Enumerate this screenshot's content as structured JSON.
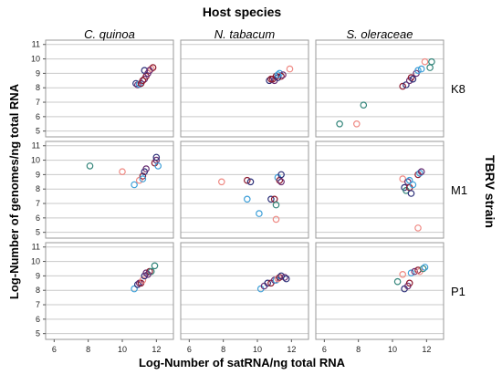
{
  "chart_data": {
    "type": "scatter",
    "title": "Host species",
    "xlabel": "Log-Number of satRNA/ng total RNA",
    "ylabel": "Log-Number of genomes/ng total RNA",
    "facet_col_title": "Host species",
    "facet_row_title": "TBRV strain",
    "columns": [
      "C. quinoa",
      "N. tabacum",
      "S. oleraceae"
    ],
    "rows": [
      "K8",
      "M1",
      "P1"
    ],
    "xlim": [
      5.5,
      13
    ],
    "ylim": [
      4.6,
      11.3
    ],
    "x_ticks": [
      6,
      8,
      10,
      12
    ],
    "y_ticks": [
      5,
      6,
      7,
      8,
      9,
      10,
      11
    ],
    "grid": true,
    "marker": "open-circle",
    "colors": {
      "dark_blue": "#2c2f78",
      "dark_red": "#8e1b2f",
      "blue": "#3d9fd8",
      "teal": "#33857a",
      "salmon": "#ef8a84",
      "purple": "#6a2e72",
      "gridline": "#c9c9c9",
      "frame": "#9a9a9a"
    },
    "panels": [
      {
        "row": "K8",
        "col": "C. quinoa",
        "points": [
          {
            "x": 10.8,
            "y": 8.3,
            "c": "dark_blue"
          },
          {
            "x": 10.9,
            "y": 8.2,
            "c": "purple"
          },
          {
            "x": 11.0,
            "y": 8.25,
            "c": "blue"
          },
          {
            "x": 11.1,
            "y": 8.3,
            "c": "dark_red"
          },
          {
            "x": 11.3,
            "y": 8.6,
            "c": "purple"
          },
          {
            "x": 11.4,
            "y": 8.8,
            "c": "dark_red"
          },
          {
            "x": 11.3,
            "y": 9.2,
            "c": "dark_blue"
          },
          {
            "x": 11.5,
            "y": 9.0,
            "c": "purple"
          },
          {
            "x": 11.7,
            "y": 9.3,
            "c": "salmon"
          },
          {
            "x": 11.8,
            "y": 9.4,
            "c": "dark_red"
          },
          {
            "x": 11.6,
            "y": 9.2,
            "c": "purple"
          },
          {
            "x": 11.2,
            "y": 8.5,
            "c": "dark_red"
          }
        ]
      },
      {
        "row": "K8",
        "col": "N. tabacum",
        "points": [
          {
            "x": 10.7,
            "y": 8.5,
            "c": "dark_blue"
          },
          {
            "x": 10.9,
            "y": 8.6,
            "c": "dark_red"
          },
          {
            "x": 11.0,
            "y": 8.5,
            "c": "purple"
          },
          {
            "x": 11.1,
            "y": 8.8,
            "c": "dark_red"
          },
          {
            "x": 11.2,
            "y": 8.7,
            "c": "dark_blue"
          },
          {
            "x": 11.3,
            "y": 9.0,
            "c": "blue"
          },
          {
            "x": 11.4,
            "y": 8.8,
            "c": "dark_red"
          },
          {
            "x": 11.5,
            "y": 8.9,
            "c": "purple"
          },
          {
            "x": 11.9,
            "y": 9.3,
            "c": "salmon"
          },
          {
            "x": 11.2,
            "y": 8.9,
            "c": "blue"
          },
          {
            "x": 10.8,
            "y": 8.6,
            "c": "dark_red"
          }
        ]
      },
      {
        "row": "K8",
        "col": "S. oleraceae",
        "points": [
          {
            "x": 6.9,
            "y": 5.5,
            "c": "teal"
          },
          {
            "x": 7.9,
            "y": 5.5,
            "c": "salmon"
          },
          {
            "x": 8.3,
            "y": 6.8,
            "c": "teal"
          },
          {
            "x": 10.6,
            "y": 8.1,
            "c": "dark_red"
          },
          {
            "x": 10.8,
            "y": 8.2,
            "c": "dark_blue"
          },
          {
            "x": 11.0,
            "y": 8.5,
            "c": "purple"
          },
          {
            "x": 11.1,
            "y": 8.7,
            "c": "dark_red"
          },
          {
            "x": 11.2,
            "y": 8.6,
            "c": "dark_blue"
          },
          {
            "x": 11.4,
            "y": 9.0,
            "c": "purple"
          },
          {
            "x": 11.5,
            "y": 9.2,
            "c": "blue"
          },
          {
            "x": 11.7,
            "y": 9.3,
            "c": "blue"
          },
          {
            "x": 11.9,
            "y": 9.8,
            "c": "salmon"
          },
          {
            "x": 12.2,
            "y": 9.4,
            "c": "teal"
          },
          {
            "x": 12.3,
            "y": 9.8,
            "c": "teal"
          }
        ]
      },
      {
        "row": "M1",
        "col": "C. quinoa",
        "points": [
          {
            "x": 8.1,
            "y": 9.6,
            "c": "teal"
          },
          {
            "x": 10.0,
            "y": 9.2,
            "c": "salmon"
          },
          {
            "x": 10.7,
            "y": 8.3,
            "c": "blue"
          },
          {
            "x": 11.0,
            "y": 8.6,
            "c": "salmon"
          },
          {
            "x": 11.2,
            "y": 8.9,
            "c": "dark_red"
          },
          {
            "x": 11.3,
            "y": 9.2,
            "c": "dark_blue"
          },
          {
            "x": 11.4,
            "y": 9.4,
            "c": "purple"
          },
          {
            "x": 11.2,
            "y": 8.7,
            "c": "blue"
          },
          {
            "x": 11.9,
            "y": 9.8,
            "c": "dark_red"
          },
          {
            "x": 12.0,
            "y": 10.0,
            "c": "purple"
          },
          {
            "x": 12.1,
            "y": 9.6,
            "c": "blue"
          },
          {
            "x": 12.0,
            "y": 10.2,
            "c": "dark_blue"
          }
        ]
      },
      {
        "row": "M1",
        "col": "N. tabacum",
        "points": [
          {
            "x": 7.9,
            "y": 8.5,
            "c": "salmon"
          },
          {
            "x": 9.4,
            "y": 8.6,
            "c": "dark_red"
          },
          {
            "x": 9.6,
            "y": 8.5,
            "c": "dark_blue"
          },
          {
            "x": 9.4,
            "y": 7.3,
            "c": "blue"
          },
          {
            "x": 10.1,
            "y": 6.3,
            "c": "blue"
          },
          {
            "x": 10.8,
            "y": 7.3,
            "c": "dark_blue"
          },
          {
            "x": 11.0,
            "y": 7.3,
            "c": "dark_red"
          },
          {
            "x": 11.1,
            "y": 6.9,
            "c": "teal"
          },
          {
            "x": 11.1,
            "y": 5.9,
            "c": "salmon"
          },
          {
            "x": 11.2,
            "y": 8.8,
            "c": "blue"
          },
          {
            "x": 11.3,
            "y": 8.6,
            "c": "dark_red"
          },
          {
            "x": 11.4,
            "y": 9.0,
            "c": "dark_blue"
          },
          {
            "x": 11.4,
            "y": 8.5,
            "c": "purple"
          }
        ]
      },
      {
        "row": "M1",
        "col": "S. oleraceae",
        "points": [
          {
            "x": 10.6,
            "y": 8.7,
            "c": "salmon"
          },
          {
            "x": 10.7,
            "y": 8.1,
            "c": "dark_blue"
          },
          {
            "x": 10.8,
            "y": 7.9,
            "c": "teal"
          },
          {
            "x": 10.9,
            "y": 8.5,
            "c": "purple"
          },
          {
            "x": 11.0,
            "y": 8.1,
            "c": "dark_red"
          },
          {
            "x": 11.0,
            "y": 8.6,
            "c": "blue"
          },
          {
            "x": 11.1,
            "y": 7.7,
            "c": "dark_blue"
          },
          {
            "x": 11.2,
            "y": 8.3,
            "c": "blue"
          },
          {
            "x": 11.5,
            "y": 9.0,
            "c": "dark_red"
          },
          {
            "x": 11.6,
            "y": 9.1,
            "c": "blue"
          },
          {
            "x": 11.7,
            "y": 9.2,
            "c": "purple"
          },
          {
            "x": 11.5,
            "y": 5.3,
            "c": "salmon"
          }
        ]
      },
      {
        "row": "P1",
        "col": "C. quinoa",
        "points": [
          {
            "x": 10.7,
            "y": 8.1,
            "c": "blue"
          },
          {
            "x": 10.9,
            "y": 8.4,
            "c": "dark_blue"
          },
          {
            "x": 11.0,
            "y": 8.5,
            "c": "purple"
          },
          {
            "x": 11.1,
            "y": 8.5,
            "c": "dark_red"
          },
          {
            "x": 11.2,
            "y": 8.7,
            "c": "salmon"
          },
          {
            "x": 11.3,
            "y": 9.0,
            "c": "dark_blue"
          },
          {
            "x": 11.4,
            "y": 9.2,
            "c": "purple"
          },
          {
            "x": 11.6,
            "y": 9.3,
            "c": "dark_red"
          },
          {
            "x": 11.7,
            "y": 9.3,
            "c": "teal"
          },
          {
            "x": 11.9,
            "y": 9.7,
            "c": "teal"
          },
          {
            "x": 11.5,
            "y": 9.1,
            "c": "purple"
          }
        ]
      },
      {
        "row": "P1",
        "col": "N. tabacum",
        "points": [
          {
            "x": 10.2,
            "y": 8.1,
            "c": "blue"
          },
          {
            "x": 10.4,
            "y": 8.3,
            "c": "purple"
          },
          {
            "x": 10.6,
            "y": 8.5,
            "c": "dark_blue"
          },
          {
            "x": 10.8,
            "y": 8.5,
            "c": "dark_red"
          },
          {
            "x": 11.0,
            "y": 8.7,
            "c": "purple"
          },
          {
            "x": 11.1,
            "y": 8.7,
            "c": "blue"
          },
          {
            "x": 11.2,
            "y": 8.8,
            "c": "salmon"
          },
          {
            "x": 11.3,
            "y": 8.9,
            "c": "dark_red"
          },
          {
            "x": 11.4,
            "y": 9.0,
            "c": "dark_blue"
          },
          {
            "x": 11.6,
            "y": 8.9,
            "c": "purple"
          },
          {
            "x": 11.7,
            "y": 8.8,
            "c": "dark_blue"
          }
        ]
      },
      {
        "row": "P1",
        "col": "S. oleraceae",
        "points": [
          {
            "x": 10.3,
            "y": 8.6,
            "c": "teal"
          },
          {
            "x": 10.6,
            "y": 9.1,
            "c": "salmon"
          },
          {
            "x": 10.7,
            "y": 8.1,
            "c": "dark_blue"
          },
          {
            "x": 10.9,
            "y": 8.3,
            "c": "purple"
          },
          {
            "x": 11.0,
            "y": 8.5,
            "c": "dark_red"
          },
          {
            "x": 11.1,
            "y": 9.2,
            "c": "blue"
          },
          {
            "x": 11.3,
            "y": 9.3,
            "c": "purple"
          },
          {
            "x": 11.5,
            "y": 9.4,
            "c": "dark_red"
          },
          {
            "x": 11.6,
            "y": 9.3,
            "c": "salmon"
          },
          {
            "x": 11.8,
            "y": 9.5,
            "c": "teal"
          },
          {
            "x": 11.9,
            "y": 9.6,
            "c": "blue"
          }
        ]
      }
    ]
  }
}
